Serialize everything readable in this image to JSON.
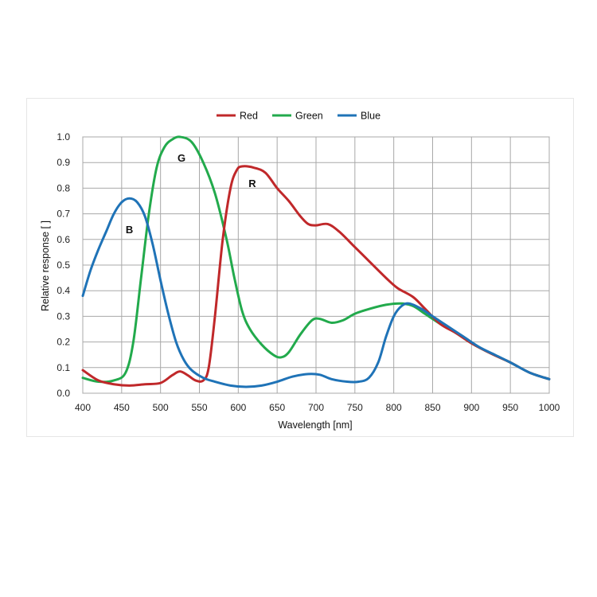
{
  "chart_data": {
    "type": "line",
    "xlabel": "Wavelength [nm]",
    "ylabel": "Relative response [ ]",
    "xlim": [
      400,
      1000
    ],
    "ylim": [
      0,
      1.0
    ],
    "xticks": [
      400,
      450,
      500,
      550,
      600,
      650,
      700,
      750,
      800,
      850,
      900,
      950,
      1000
    ],
    "yticks": [
      "0.0",
      "0.1",
      "0.2",
      "0.3",
      "0.4",
      "0.5",
      "0.6",
      "0.7",
      "0.8",
      "0.9",
      "1.0"
    ],
    "grid": true,
    "legend_position": "top-center",
    "series": [
      {
        "name": "Red",
        "color": "#c0282a",
        "curve_label": "R",
        "label_at": [
          618,
          0.82
        ],
        "points": [
          [
            400,
            0.09
          ],
          [
            420,
            0.05
          ],
          [
            440,
            0.035
          ],
          [
            460,
            0.03
          ],
          [
            480,
            0.035
          ],
          [
            500,
            0.04
          ],
          [
            515,
            0.07
          ],
          [
            525,
            0.085
          ],
          [
            535,
            0.07
          ],
          [
            545,
            0.05
          ],
          [
            555,
            0.05
          ],
          [
            562,
            0.1
          ],
          [
            570,
            0.3
          ],
          [
            580,
            0.6
          ],
          [
            590,
            0.8
          ],
          [
            598,
            0.87
          ],
          [
            605,
            0.885
          ],
          [
            620,
            0.88
          ],
          [
            635,
            0.86
          ],
          [
            650,
            0.8
          ],
          [
            665,
            0.75
          ],
          [
            680,
            0.69
          ],
          [
            690,
            0.66
          ],
          [
            700,
            0.655
          ],
          [
            715,
            0.66
          ],
          [
            730,
            0.63
          ],
          [
            750,
            0.57
          ],
          [
            770,
            0.51
          ],
          [
            790,
            0.45
          ],
          [
            805,
            0.41
          ],
          [
            825,
            0.375
          ],
          [
            840,
            0.33
          ],
          [
            860,
            0.27
          ],
          [
            880,
            0.235
          ],
          [
            900,
            0.195
          ],
          [
            925,
            0.155
          ],
          [
            950,
            0.12
          ],
          [
            975,
            0.08
          ],
          [
            1000,
            0.055
          ]
        ]
      },
      {
        "name": "Green",
        "color": "#22aa4c",
        "curve_label": "G",
        "label_at": [
          527,
          0.92
        ],
        "points": [
          [
            400,
            0.06
          ],
          [
            420,
            0.045
          ],
          [
            440,
            0.05
          ],
          [
            455,
            0.08
          ],
          [
            465,
            0.2
          ],
          [
            475,
            0.45
          ],
          [
            485,
            0.7
          ],
          [
            495,
            0.88
          ],
          [
            505,
            0.96
          ],
          [
            515,
            0.99
          ],
          [
            525,
            1.0
          ],
          [
            540,
            0.98
          ],
          [
            555,
            0.9
          ],
          [
            570,
            0.78
          ],
          [
            585,
            0.6
          ],
          [
            595,
            0.45
          ],
          [
            605,
            0.32
          ],
          [
            615,
            0.25
          ],
          [
            630,
            0.19
          ],
          [
            645,
            0.15
          ],
          [
            655,
            0.14
          ],
          [
            665,
            0.16
          ],
          [
            680,
            0.23
          ],
          [
            695,
            0.285
          ],
          [
            705,
            0.29
          ],
          [
            720,
            0.275
          ],
          [
            735,
            0.285
          ],
          [
            750,
            0.31
          ],
          [
            770,
            0.33
          ],
          [
            790,
            0.345
          ],
          [
            810,
            0.35
          ],
          [
            825,
            0.34
          ],
          [
            840,
            0.31
          ],
          [
            860,
            0.27
          ],
          [
            880,
            0.235
          ],
          [
            900,
            0.195
          ],
          [
            925,
            0.155
          ],
          [
            950,
            0.12
          ],
          [
            975,
            0.08
          ],
          [
            1000,
            0.055
          ]
        ]
      },
      {
        "name": "Blue",
        "color": "#1f73b7",
        "curve_label": "B",
        "label_at": [
          460,
          0.64
        ],
        "points": [
          [
            400,
            0.38
          ],
          [
            410,
            0.48
          ],
          [
            420,
            0.56
          ],
          [
            430,
            0.63
          ],
          [
            440,
            0.7
          ],
          [
            450,
            0.745
          ],
          [
            460,
            0.76
          ],
          [
            470,
            0.745
          ],
          [
            480,
            0.69
          ],
          [
            490,
            0.58
          ],
          [
            500,
            0.44
          ],
          [
            510,
            0.31
          ],
          [
            520,
            0.2
          ],
          [
            530,
            0.13
          ],
          [
            540,
            0.09
          ],
          [
            555,
            0.06
          ],
          [
            570,
            0.045
          ],
          [
            590,
            0.03
          ],
          [
            610,
            0.025
          ],
          [
            630,
            0.03
          ],
          [
            650,
            0.045
          ],
          [
            670,
            0.065
          ],
          [
            690,
            0.075
          ],
          [
            705,
            0.072
          ],
          [
            720,
            0.055
          ],
          [
            740,
            0.045
          ],
          [
            755,
            0.045
          ],
          [
            768,
            0.06
          ],
          [
            780,
            0.12
          ],
          [
            790,
            0.22
          ],
          [
            800,
            0.3
          ],
          [
            810,
            0.34
          ],
          [
            820,
            0.35
          ],
          [
            835,
            0.33
          ],
          [
            850,
            0.3
          ],
          [
            870,
            0.26
          ],
          [
            890,
            0.22
          ],
          [
            910,
            0.18
          ],
          [
            930,
            0.15
          ],
          [
            950,
            0.12
          ],
          [
            975,
            0.08
          ],
          [
            1000,
            0.055
          ]
        ]
      }
    ]
  }
}
